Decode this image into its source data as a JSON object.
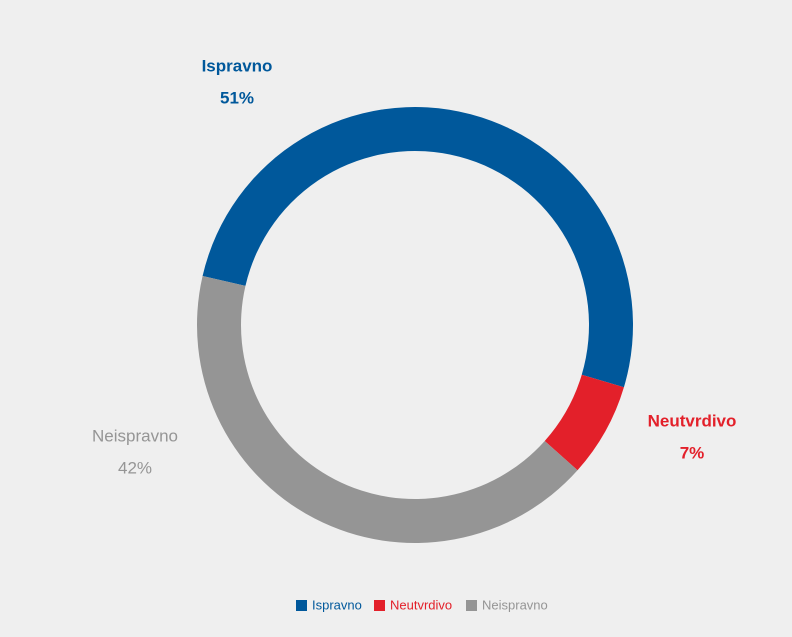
{
  "chart_data": {
    "type": "donut",
    "categories": [
      "Ispravno",
      "Neutvrdivo",
      "Neispravno"
    ],
    "values": [
      51,
      7,
      42
    ],
    "value_labels": [
      "51%",
      "7%",
      "42%"
    ],
    "colors": [
      "#00589b",
      "#e3202a",
      "#959595"
    ]
  }
}
